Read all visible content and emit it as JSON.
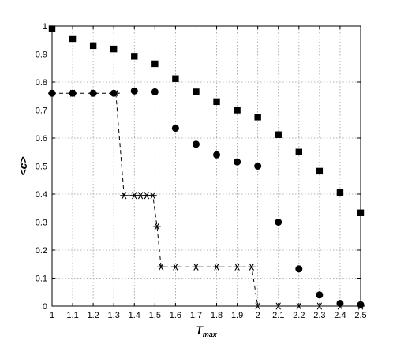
{
  "chart_data": {
    "type": "scatter",
    "title": "",
    "xlabel": "T",
    "xlabel_sub": "max",
    "ylabel": "<c>",
    "xlim": [
      1,
      2.5
    ],
    "ylim": [
      0,
      1
    ],
    "grid": true,
    "xticks": [
      "1",
      "1.1",
      "1.2",
      "1.3",
      "1.4",
      "1.5",
      "1.6",
      "1.7",
      "1.8",
      "1.9",
      "2",
      "2.1",
      "2.2",
      "2.3",
      "2.4",
      "2.5"
    ],
    "yticks": [
      "0",
      "0.1",
      "0.2",
      "0.3",
      "0.4",
      "0.5",
      "0.6",
      "0.7",
      "0.8",
      "0.9",
      "1"
    ],
    "series": [
      {
        "marker": "square",
        "line": "none",
        "color": "#000000",
        "x": [
          1.0,
          1.1,
          1.2,
          1.3,
          1.4,
          1.5,
          1.6,
          1.7,
          1.8,
          1.9,
          2.0,
          2.1,
          2.2,
          2.3,
          2.4,
          2.5
        ],
        "y": [
          0.99,
          0.955,
          0.93,
          0.918,
          0.892,
          0.865,
          0.812,
          0.765,
          0.73,
          0.7,
          0.675,
          0.612,
          0.55,
          0.482,
          0.405,
          0.333
        ]
      },
      {
        "marker": "circle",
        "line": "none",
        "color": "#000000",
        "x": [
          1.0,
          1.1,
          1.2,
          1.3,
          1.4,
          1.5,
          1.6,
          1.7,
          1.8,
          1.9,
          2.0,
          2.1,
          2.2,
          2.3,
          2.4,
          2.5
        ],
        "y": [
          0.76,
          0.76,
          0.76,
          0.76,
          0.768,
          0.765,
          0.635,
          0.578,
          0.54,
          0.515,
          0.5,
          0.3,
          0.133,
          0.04,
          0.01,
          0.005
        ]
      },
      {
        "marker": "asterisk",
        "line": "dashed",
        "color": "#000000",
        "x": [
          1.0,
          1.1,
          1.2,
          1.31,
          1.35,
          1.4,
          1.43,
          1.46,
          1.49,
          1.51,
          1.53,
          1.6,
          1.7,
          1.8,
          1.9,
          1.97,
          2.0,
          2.1,
          2.2,
          2.3,
          2.4,
          2.5
        ],
        "y": [
          0.76,
          0.76,
          0.76,
          0.76,
          0.395,
          0.395,
          0.395,
          0.395,
          0.395,
          0.285,
          0.14,
          0.14,
          0.14,
          0.14,
          0.14,
          0.14,
          0.0,
          0.0,
          0.0,
          0.0,
          0.0,
          0.0
        ]
      }
    ]
  }
}
